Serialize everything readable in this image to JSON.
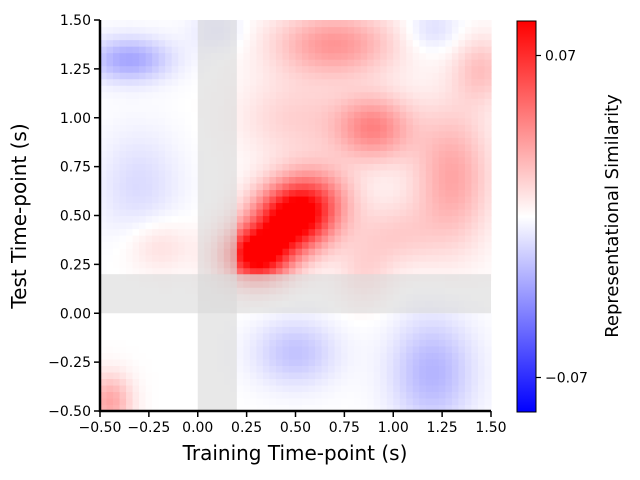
{
  "chart_data": {
    "type": "heatmap",
    "title": "",
    "xlabel": "Training Time-point (s)",
    "ylabel": "Test Time-point (s)",
    "xlim": [
      -0.5,
      1.5
    ],
    "ylim": [
      -0.5,
      1.5
    ],
    "x_ticks": [
      "−0.50",
      "−0.25",
      "0.00",
      "0.25",
      "0.50",
      "0.75",
      "1.00",
      "1.25",
      "1.50"
    ],
    "y_ticks": [
      "−0.50",
      "−0.25",
      "0.00",
      "0.25",
      "0.50",
      "0.75",
      "1.00",
      "1.25",
      "1.50"
    ],
    "x_tick_values": [
      -0.5,
      -0.25,
      0,
      0.25,
      0.5,
      0.75,
      1.0,
      1.25,
      1.5
    ],
    "y_tick_values": [
      -0.5,
      -0.25,
      0,
      0.25,
      0.5,
      0.75,
      1.0,
      1.25,
      1.5
    ],
    "colorbar": {
      "label": "Representational Similarity",
      "range": [
        -0.085,
        0.085
      ],
      "ticks": [
        "0.07",
        "−0.07"
      ],
      "tick_values": [
        0.07,
        -0.07
      ],
      "colormap": "bwr",
      "low_color": "#0000ff",
      "mid_color": "#ffffff",
      "high_color": "#ff0000"
    },
    "shaded_bands": [
      {
        "axis": "x",
        "from": 0.0,
        "to": 0.2,
        "color": "#d9d9d9"
      },
      {
        "axis": "y",
        "from": 0.0,
        "to": 0.2,
        "color": "#d9d9d9"
      }
    ],
    "blobs": [
      {
        "x": 0.3,
        "y": 0.3,
        "sx": 0.12,
        "sy": 0.1,
        "amp": 0.09
      },
      {
        "x": 0.48,
        "y": 0.48,
        "sx": 0.14,
        "sy": 0.12,
        "amp": 0.085
      },
      {
        "x": 0.6,
        "y": 0.6,
        "sx": 0.14,
        "sy": 0.12,
        "amp": 0.035
      },
      {
        "x": 0.9,
        "y": 0.95,
        "sx": 0.14,
        "sy": 0.12,
        "amp": 0.04
      },
      {
        "x": 0.7,
        "y": 1.38,
        "sx": 0.22,
        "sy": 0.12,
        "amp": 0.035
      },
      {
        "x": 1.3,
        "y": 0.7,
        "sx": 0.14,
        "sy": 0.25,
        "amp": 0.03
      },
      {
        "x": 1.45,
        "y": 1.25,
        "sx": 0.1,
        "sy": 0.12,
        "amp": 0.02
      },
      {
        "x": 0.5,
        "y": 1.0,
        "sx": 0.2,
        "sy": 0.15,
        "amp": 0.015
      },
      {
        "x": -0.35,
        "y": 1.3,
        "sx": 0.15,
        "sy": 0.08,
        "amp": -0.03
      },
      {
        "x": -0.3,
        "y": 0.65,
        "sx": 0.15,
        "sy": 0.2,
        "amp": -0.012
      },
      {
        "x": -0.45,
        "y": -0.45,
        "sx": 0.08,
        "sy": 0.1,
        "amp": 0.03
      },
      {
        "x": -0.2,
        "y": 0.35,
        "sx": 0.12,
        "sy": 0.1,
        "amp": 0.012
      },
      {
        "x": 0.5,
        "y": -0.2,
        "sx": 0.15,
        "sy": 0.12,
        "amp": -0.02
      },
      {
        "x": 1.2,
        "y": -0.3,
        "sx": 0.15,
        "sy": 0.2,
        "amp": -0.025
      },
      {
        "x": 1.0,
        "y": 0.4,
        "sx": 0.15,
        "sy": 0.12,
        "amp": 0.015
      },
      {
        "x": 0.85,
        "y": 0.2,
        "sx": 0.1,
        "sy": 0.12,
        "amp": 0.012
      },
      {
        "x": 1.2,
        "y": 1.45,
        "sx": 0.1,
        "sy": 0.08,
        "amp": -0.012
      },
      {
        "x": 0.1,
        "y": 1.45,
        "sx": 0.1,
        "sy": 0.08,
        "amp": -0.01
      }
    ]
  }
}
